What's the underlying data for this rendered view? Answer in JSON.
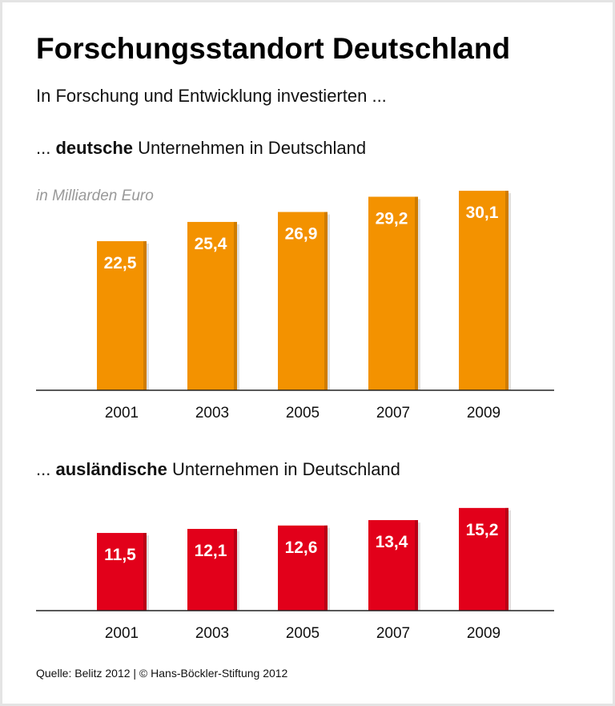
{
  "title": "Forschungsstandort Deutschland",
  "subtitle": "In Forschung und Entwicklung investierten ...",
  "source": "Quelle: Belitz 2012 | © Hans-Böckler-Stiftung 2012",
  "chart_data": [
    {
      "type": "bar",
      "title_prefix": "... ",
      "title_bold": "deutsche",
      "title_rest": " Unternehmen in Deutschland",
      "unit_label": "in Milliarden Euro",
      "categories": [
        "2001",
        "2003",
        "2005",
        "2007",
        "2009"
      ],
      "values": [
        22.5,
        25.4,
        26.9,
        29.2,
        30.1
      ],
      "value_labels": [
        "22,5",
        "25,4",
        "26,9",
        "29,2",
        "30,1"
      ],
      "color": "#F39200",
      "edge_color": "#B86E00",
      "grid": false
    },
    {
      "type": "bar",
      "title_prefix": "... ",
      "title_bold": "ausländische",
      "title_rest": " Unternehmen in Deutschland",
      "categories": [
        "2001",
        "2003",
        "2005",
        "2007",
        "2009"
      ],
      "values": [
        11.5,
        12.1,
        12.6,
        13.4,
        15.2
      ],
      "value_labels": [
        "11,5",
        "12,1",
        "12,6",
        "13,4",
        "15,2"
      ],
      "color": "#E2001A",
      "edge_color": "#9E0012",
      "grid": false
    }
  ]
}
